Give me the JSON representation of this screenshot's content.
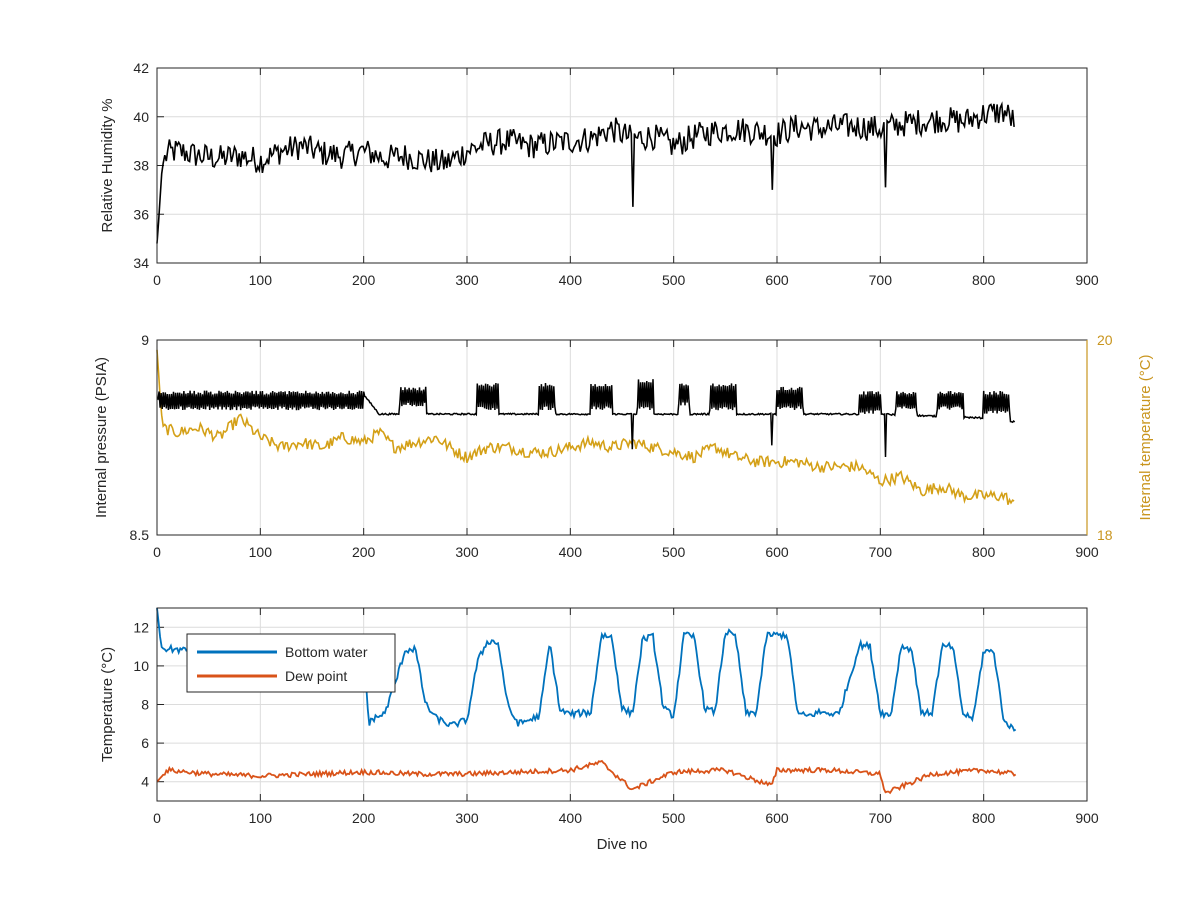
{
  "chart_data": [
    {
      "type": "line",
      "xlabel": "",
      "ylabel": "Relative Humidity %",
      "xlim": [
        0,
        900
      ],
      "ylim": [
        34,
        42
      ],
      "xticks": [
        0,
        100,
        200,
        300,
        400,
        500,
        600,
        700,
        800,
        900
      ],
      "yticks": [
        34,
        36,
        38,
        40,
        42
      ],
      "grid": true,
      "series": [
        {
          "color": "#000000",
          "x": [
            0,
            2,
            5,
            10,
            20,
            40,
            60,
            80,
            100,
            120,
            140,
            160,
            180,
            200,
            220,
            240,
            260,
            280,
            300,
            320,
            340,
            360,
            380,
            400,
            420,
            440,
            460,
            480,
            500,
            520,
            540,
            560,
            580,
            600,
            620,
            640,
            660,
            680,
            700,
            720,
            740,
            760,
            780,
            800,
            820,
            830
          ],
          "y": [
            34.8,
            36.0,
            38.0,
            38.5,
            38.6,
            38.4,
            38.3,
            38.4,
            38.2,
            38.6,
            38.8,
            38.5,
            38.4,
            38.6,
            38.3,
            38.4,
            38.2,
            38.1,
            38.6,
            38.9,
            39.0,
            38.8,
            38.9,
            39.0,
            39.1,
            39.5,
            39.1,
            39.2,
            38.8,
            39.2,
            39.4,
            39.5,
            39.4,
            39.3,
            39.6,
            39.5,
            39.6,
            39.6,
            39.5,
            39.7,
            39.8,
            39.9,
            39.8,
            40.1,
            40.2,
            39.8
          ]
        }
      ],
      "dips": [
        {
          "x": 460,
          "y": 36.3
        },
        {
          "x": 595,
          "y": 37.0
        },
        {
          "x": 705,
          "y": 37.1
        }
      ]
    },
    {
      "type": "line",
      "xlabel": "",
      "ylabel": "Internal pressure (PSIA)",
      "y2label": "Internal temperature (°C)",
      "xlim": [
        0,
        900
      ],
      "ylim": [
        8.5,
        9
      ],
      "y2lim": [
        18,
        20
      ],
      "xticks": [
        0,
        100,
        200,
        300,
        400,
        500,
        600,
        700,
        800,
        900
      ],
      "yticks": [
        8.5,
        9
      ],
      "y2ticks": [
        18,
        20
      ],
      "grid": true,
      "colors": {
        "pressure": "#000000",
        "temperature": "#d4a017",
        "right_axis": "#c9951e"
      },
      "pressure": {
        "base": [
          [
            0,
            8.85
          ],
          [
            10,
            8.85
          ],
          [
            100,
            8.86
          ],
          [
            200,
            8.86
          ],
          [
            215,
            8.81
          ],
          [
            300,
            8.81
          ],
          [
            400,
            8.81
          ],
          [
            500,
            8.81
          ],
          [
            600,
            8.81
          ],
          [
            700,
            8.81
          ],
          [
            800,
            8.8
          ],
          [
            830,
            8.79
          ]
        ],
        "oscillating_ranges": [
          {
            "x0": 2,
            "x1": 200,
            "low": 8.82,
            "high": 8.87
          },
          {
            "x0": 235,
            "x1": 260,
            "low": 8.83,
            "high": 8.88
          },
          {
            "x0": 310,
            "x1": 330,
            "low": 8.82,
            "high": 8.89
          },
          {
            "x0": 370,
            "x1": 385,
            "low": 8.82,
            "high": 8.89
          },
          {
            "x0": 420,
            "x1": 440,
            "low": 8.82,
            "high": 8.89
          },
          {
            "x0": 465,
            "x1": 480,
            "low": 8.82,
            "high": 8.9
          },
          {
            "x0": 505,
            "x1": 515,
            "low": 8.83,
            "high": 8.89
          },
          {
            "x0": 535,
            "x1": 560,
            "low": 8.82,
            "high": 8.89
          },
          {
            "x0": 600,
            "x1": 625,
            "low": 8.82,
            "high": 8.88
          },
          {
            "x0": 680,
            "x1": 700,
            "low": 8.81,
            "high": 8.87
          },
          {
            "x0": 715,
            "x1": 735,
            "low": 8.82,
            "high": 8.87
          },
          {
            "x0": 755,
            "x1": 780,
            "low": 8.82,
            "high": 8.87
          },
          {
            "x0": 800,
            "x1": 825,
            "low": 8.81,
            "high": 8.87
          }
        ],
        "dips": [
          {
            "x": 460,
            "y": 8.72
          },
          {
            "x": 595,
            "y": 8.73
          },
          {
            "x": 705,
            "y": 8.7
          }
        ]
      },
      "temperature": {
        "x": [
          0,
          5,
          20,
          40,
          60,
          80,
          100,
          120,
          140,
          160,
          180,
          200,
          215,
          230,
          250,
          270,
          290,
          300,
          320,
          340,
          360,
          380,
          400,
          420,
          440,
          460,
          480,
          500,
          520,
          540,
          560,
          580,
          600,
          620,
          640,
          660,
          680,
          700,
          720,
          740,
          760,
          780,
          800,
          820,
          830
        ],
        "y": [
          19.9,
          19.1,
          19.05,
          19.1,
          19.0,
          19.2,
          19.0,
          18.9,
          18.95,
          18.9,
          19.0,
          18.95,
          19.05,
          18.9,
          18.95,
          19.0,
          18.85,
          18.8,
          18.9,
          18.9,
          18.85,
          18.85,
          18.9,
          18.95,
          18.9,
          18.95,
          18.9,
          18.85,
          18.8,
          18.9,
          18.8,
          18.75,
          18.75,
          18.75,
          18.7,
          18.7,
          18.7,
          18.55,
          18.6,
          18.45,
          18.5,
          18.4,
          18.4,
          18.4,
          18.3
        ]
      }
    },
    {
      "type": "line",
      "xlabel": "Dive no",
      "ylabel": "Temperature (°C)",
      "xlim": [
        0,
        900
      ],
      "ylim": [
        3,
        13
      ],
      "xticks": [
        0,
        100,
        200,
        300,
        400,
        500,
        600,
        700,
        800,
        900
      ],
      "yticks": [
        4,
        6,
        8,
        10,
        12
      ],
      "grid": true,
      "legend": "top-left",
      "series": [
        {
          "name": "Bottom water",
          "color": "#0072bd",
          "x": [
            0,
            4,
            6,
            30,
            100,
            200,
            205,
            210,
            220,
            230,
            240,
            250,
            260,
            270,
            285,
            300,
            310,
            320,
            330,
            340,
            350,
            370,
            380,
            390,
            400,
            420,
            430,
            440,
            450,
            460,
            470,
            480,
            490,
            500,
            510,
            520,
            530,
            540,
            550,
            560,
            570,
            580,
            590,
            600,
            610,
            620,
            630,
            640,
            660,
            680,
            690,
            700,
            710,
            720,
            730,
            740,
            750,
            760,
            770,
            780,
            790,
            800,
            810,
            820,
            830
          ],
          "y": [
            13,
            11,
            10.9,
            10.8,
            10.8,
            10.8,
            7.0,
            7.3,
            7.5,
            9.0,
            10.8,
            10.9,
            8.0,
            7.3,
            6.9,
            7.2,
            10.2,
            11.3,
            11.2,
            7.8,
            7.0,
            7.4,
            11.2,
            7.7,
            7.5,
            7.6,
            11.6,
            11.5,
            7.8,
            7.5,
            11.4,
            11.5,
            7.8,
            7.4,
            11.6,
            11.5,
            7.8,
            7.6,
            11.8,
            11.5,
            7.5,
            7.6,
            11.6,
            11.6,
            11.6,
            7.5,
            7.4,
            7.6,
            7.5,
            11.1,
            11.0,
            7.6,
            7.4,
            11.0,
            10.9,
            7.5,
            7.6,
            11.0,
            11.0,
            7.5,
            7.3,
            10.8,
            10.7,
            7.0,
            6.8
          ]
        },
        {
          "name": "Dew point",
          "color": "#d95319",
          "x": [
            0,
            10,
            50,
            100,
            150,
            200,
            250,
            300,
            350,
            400,
            430,
            460,
            500,
            550,
            595,
            600,
            650,
            700,
            705,
            750,
            800,
            830
          ],
          "y": [
            4.0,
            4.6,
            4.4,
            4.3,
            4.4,
            4.5,
            4.4,
            4.4,
            4.5,
            4.6,
            5.0,
            3.6,
            4.5,
            4.6,
            3.8,
            4.6,
            4.6,
            4.4,
            3.4,
            4.4,
            4.6,
            4.4
          ]
        }
      ]
    }
  ]
}
